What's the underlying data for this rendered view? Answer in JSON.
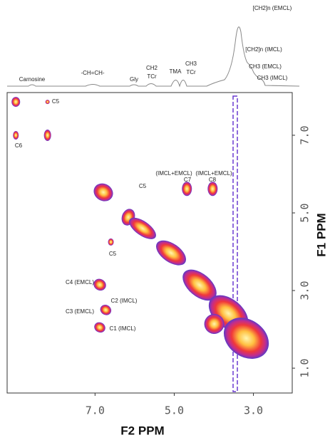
{
  "chart_data": {
    "type": "contour",
    "x_label": "F2  PPM",
    "y_label": "F1  PPM",
    "xlim": [
      9.22,
      2.02
    ],
    "ylim": [
      0.36,
      8.1
    ],
    "xticks": [
      {
        "value": 7,
        "label": "7.0"
      },
      {
        "value": 5,
        "label": "5.0"
      },
      {
        "value": 3,
        "label": "3.0"
      }
    ],
    "yticks": [
      {
        "value": 1,
        "label": "1.0"
      },
      {
        "value": 3,
        "label": "3.0"
      },
      {
        "value": 5,
        "label": "5.0"
      },
      {
        "value": 7,
        "label": "7.0"
      }
    ],
    "x": [
      9.0,
      9.0,
      8.2,
      8.2,
      6.79,
      6.16,
      6.6,
      6.88,
      6.73,
      6.88,
      4.68,
      4.03,
      5.8,
      5.08,
      4.36,
      3.63,
      3.18,
      3.99
    ],
    "values": [
      7.86,
      7.0,
      7.0,
      7.86,
      5.53,
      4.89,
      4.25,
      3.15,
      2.5,
      2.05,
      5.62,
      5.62,
      4.6,
      3.97,
      3.14,
      2.41,
      1.77,
      2.14
    ],
    "annotations": [
      "C6",
      "C5",
      "C5",
      "C5",
      "(IMCL+EMCL)",
      "(IMCL+EMCL)",
      "C7",
      "C8",
      "C4 (EMCL)",
      "C2 (IMCL)",
      "C3 (EMCL)",
      "C1 (IMCL)"
    ],
    "spectrum_labels": [
      "Carnosine",
      "-CH=CH-",
      "Gly",
      "CH2",
      "TCr",
      "TMA",
      "CH3",
      "TCr",
      "[CH2]n (EMCL)",
      "[CH2]n (IMCL)",
      "CH3 (EMCL)",
      "CH3 (IMCL)"
    ]
  }
}
